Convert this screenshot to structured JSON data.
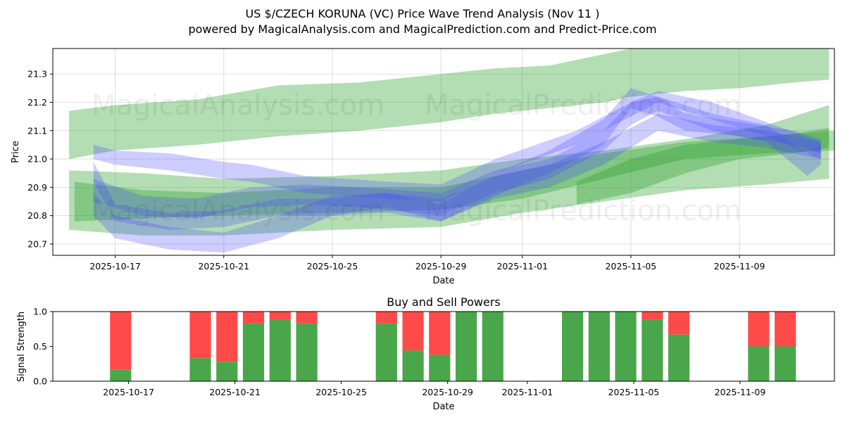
{
  "chart_data": [
    {
      "type": "area",
      "title": "US $/CZECH KORUNA (VC) Price Wave Trend Analysis (Nov 11 )",
      "subtitle": "powered by MagicalAnalysis.com and MagicalPrediction.com and Predict-Price.com",
      "xlabel": "Date",
      "ylabel": "Price",
      "x_start": "2025-10-14",
      "xlim_days": [
        -0.3,
        28.5
      ],
      "ylim": [
        20.66,
        21.39
      ],
      "yticks": [
        20.7,
        20.8,
        20.9,
        21.0,
        21.1,
        21.2,
        21.3
      ],
      "xticks": [
        {
          "day": 2,
          "label": "2025-10-17"
        },
        {
          "day": 6,
          "label": "2025-10-21"
        },
        {
          "day": 10,
          "label": "2025-10-25"
        },
        {
          "day": 14,
          "label": "2025-10-29"
        },
        {
          "day": 17,
          "label": "2025-11-01"
        },
        {
          "day": 21,
          "label": "2025-11-05"
        },
        {
          "day": 25,
          "label": "2025-11-09"
        }
      ],
      "watermarks": [
        "MagicalAnalysis.com",
        "MagicalPrediction.com",
        "MagicalAnalysis.com",
        "MagicalPrediction.com"
      ],
      "series": [
        {
          "name": "green-band-upper",
          "color": "#2ca02c",
          "x": [
            0.3,
            2,
            5,
            8,
            11,
            14,
            16,
            18,
            20,
            21,
            23,
            25,
            27,
            28.3
          ],
          "low": [
            21.0,
            21.03,
            21.05,
            21.08,
            21.1,
            21.13,
            21.16,
            21.18,
            21.2,
            21.22,
            21.24,
            21.25,
            21.27,
            21.28
          ],
          "high": [
            21.17,
            21.19,
            21.21,
            21.26,
            21.27,
            21.3,
            21.32,
            21.33,
            21.37,
            21.39,
            21.4,
            21.4,
            21.4,
            21.4
          ]
        },
        {
          "name": "green-band-mid",
          "color": "#2ca02c",
          "x": [
            0.5,
            3,
            6,
            10,
            14,
            17,
            20,
            23,
            26,
            28.5
          ],
          "low": [
            20.78,
            20.79,
            20.8,
            20.81,
            20.82,
            20.86,
            20.93,
            21.0,
            21.02,
            21.03
          ],
          "high": [
            20.92,
            20.89,
            20.88,
            20.9,
            20.9,
            20.96,
            21.02,
            21.06,
            21.08,
            21.1
          ]
        },
        {
          "name": "green-band-lower",
          "color": "#2ca02c",
          "x": [
            0.3,
            3,
            6,
            10,
            14,
            17,
            20,
            23,
            26,
            28.3
          ],
          "low": [
            20.75,
            20.73,
            20.73,
            20.75,
            20.76,
            20.81,
            20.85,
            20.89,
            20.91,
            20.93
          ],
          "high": [
            20.96,
            20.95,
            20.93,
            20.94,
            20.96,
            21.0,
            21.03,
            21.07,
            21.12,
            21.19
          ]
        },
        {
          "name": "green-band-forecast",
          "color": "#2ca02c",
          "x": [
            19,
            21,
            23,
            25,
            27,
            28.3
          ],
          "low": [
            20.84,
            20.88,
            20.95,
            21.0,
            21.02,
            21.04
          ],
          "high": [
            20.92,
            21.0,
            21.05,
            21.07,
            21.09,
            21.11
          ]
        },
        {
          "name": "blue-wave-1",
          "color": "#4a4aff",
          "x": [
            1.2,
            2,
            4,
            6,
            8,
            10,
            12,
            14,
            16,
            18,
            20,
            21,
            22,
            23,
            25,
            27,
            28
          ],
          "low": [
            20.92,
            20.78,
            20.75,
            20.76,
            20.8,
            20.8,
            20.83,
            20.78,
            20.87,
            20.95,
            21.05,
            21.18,
            21.15,
            21.1,
            21.08,
            21.05,
            21.02
          ],
          "high": [
            20.99,
            20.84,
            20.81,
            20.82,
            20.86,
            20.86,
            20.88,
            20.84,
            20.95,
            21.03,
            21.14,
            21.25,
            21.22,
            21.16,
            21.13,
            21.1,
            21.07
          ]
        },
        {
          "name": "blue-wave-2",
          "color": "#4a4aff",
          "x": [
            1.2,
            2,
            4,
            6,
            7,
            9,
            12,
            14,
            16,
            19,
            21,
            22,
            24,
            26,
            28
          ],
          "low": [
            21.0,
            20.98,
            20.96,
            20.93,
            20.92,
            20.88,
            20.86,
            20.85,
            20.95,
            21.05,
            21.15,
            21.2,
            21.14,
            21.08,
            21.0
          ],
          "high": [
            21.05,
            21.03,
            21.02,
            20.99,
            20.98,
            20.94,
            20.92,
            20.91,
            21.0,
            21.1,
            21.2,
            21.24,
            21.2,
            21.13,
            21.06
          ]
        },
        {
          "name": "blue-wave-3",
          "color": "#4a4aff",
          "x": [
            1.2,
            2,
            4,
            6,
            8,
            10,
            12,
            14,
            16,
            18,
            20,
            22,
            24,
            26,
            28
          ],
          "low": [
            20.8,
            20.72,
            20.68,
            20.67,
            20.72,
            20.8,
            20.81,
            20.78,
            20.86,
            20.9,
            20.98,
            21.1,
            21.06,
            21.04,
            21.0
          ],
          "high": [
            20.88,
            20.8,
            20.76,
            20.74,
            20.8,
            20.87,
            20.88,
            20.86,
            20.94,
            20.98,
            21.06,
            21.16,
            21.12,
            21.1,
            21.06
          ]
        },
        {
          "name": "blue-wave-4",
          "color": "#4a4aff",
          "x": [
            1.2,
            3,
            5,
            7,
            9,
            11,
            14,
            16,
            18,
            20,
            21,
            22,
            24,
            26,
            27.5,
            28
          ],
          "low": [
            20.85,
            20.8,
            20.79,
            20.83,
            20.84,
            20.83,
            20.8,
            20.88,
            20.93,
            21.03,
            21.12,
            21.17,
            21.1,
            21.06,
            20.94,
            20.98
          ],
          "high": [
            20.93,
            20.87,
            20.86,
            20.9,
            20.91,
            20.9,
            20.88,
            20.96,
            21.0,
            21.1,
            21.2,
            21.22,
            21.16,
            21.12,
            21.02,
            21.05
          ]
        }
      ]
    },
    {
      "type": "bar",
      "title": "Buy and Sell Powers",
      "xlabel": "Date",
      "ylabel": "Signal Strength",
      "ylim": [
        0,
        1.0
      ],
      "yticks": [
        0.0,
        0.5,
        1.0
      ],
      "xticks": [
        {
          "day": 2,
          "label": "2025-10-17"
        },
        {
          "day": 6,
          "label": "2025-10-21"
        },
        {
          "day": 10,
          "label": "2025-10-25"
        },
        {
          "day": 14,
          "label": "2025-10-29"
        },
        {
          "day": 17,
          "label": "2025-11-01"
        },
        {
          "day": 21,
          "label": "2025-11-05"
        },
        {
          "day": 25,
          "label": "2025-11-09"
        }
      ],
      "buy_color": "#4aa64a",
      "sell_color": "#ff4a4a",
      "bars": [
        {
          "date": "2025-10-16",
          "day": 1.7,
          "buy": 0.17,
          "sell": 0.83
        },
        {
          "date": "2025-10-19",
          "day": 4.7,
          "buy": 0.33,
          "sell": 0.67
        },
        {
          "date": "2025-10-20",
          "day": 5.7,
          "buy": 0.28,
          "sell": 0.72
        },
        {
          "date": "2025-10-21",
          "day": 6.7,
          "buy": 0.83,
          "sell": 0.17
        },
        {
          "date": "2025-10-22",
          "day": 7.7,
          "buy": 0.88,
          "sell": 0.12
        },
        {
          "date": "2025-10-23",
          "day": 8.7,
          "buy": 0.83,
          "sell": 0.17
        },
        {
          "date": "2025-10-26",
          "day": 11.7,
          "buy": 0.83,
          "sell": 0.17
        },
        {
          "date": "2025-10-27",
          "day": 12.7,
          "buy": 0.44,
          "sell": 0.56
        },
        {
          "date": "2025-10-28",
          "day": 13.7,
          "buy": 0.38,
          "sell": 0.62
        },
        {
          "date": "2025-10-29",
          "day": 14.7,
          "buy": 1.0,
          "sell": 0.0
        },
        {
          "date": "2025-10-30",
          "day": 15.7,
          "buy": 1.0,
          "sell": 0.0
        },
        {
          "date": "2025-11-02",
          "day": 18.7,
          "buy": 1.0,
          "sell": 0.0
        },
        {
          "date": "2025-11-03",
          "day": 19.7,
          "buy": 1.0,
          "sell": 0.0
        },
        {
          "date": "2025-11-04",
          "day": 20.7,
          "buy": 1.0,
          "sell": 0.0
        },
        {
          "date": "2025-11-05",
          "day": 21.7,
          "buy": 0.88,
          "sell": 0.12
        },
        {
          "date": "2025-11-06",
          "day": 22.7,
          "buy": 0.67,
          "sell": 0.33
        },
        {
          "date": "2025-11-09",
          "day": 25.7,
          "buy": 0.5,
          "sell": 0.5
        },
        {
          "date": "2025-11-10",
          "day": 26.7,
          "buy": 0.5,
          "sell": 0.5
        }
      ]
    }
  ]
}
